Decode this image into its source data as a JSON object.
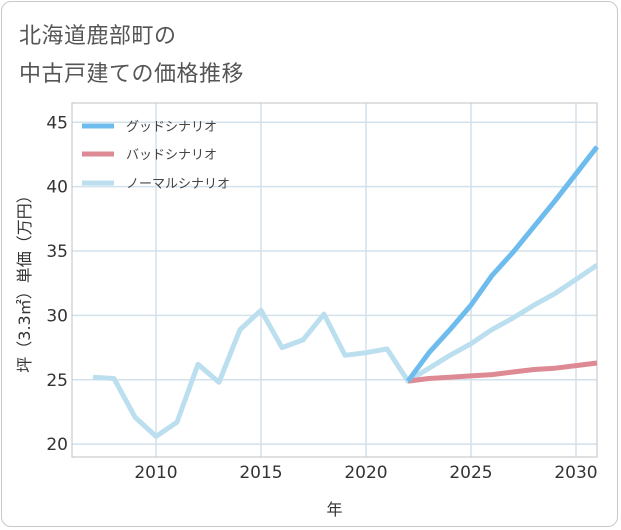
{
  "title": {
    "line1": "北海道鹿部町の",
    "line2": "中古戸建ての価格推移"
  },
  "chart_data": {
    "type": "line",
    "xlabel": "年",
    "ylabel": "坪（3.3㎡）単価（万円）",
    "xlim": [
      2006,
      2031
    ],
    "ylim": [
      19,
      46.5
    ],
    "xticks": [
      2010,
      2015,
      2020,
      2025,
      2030
    ],
    "yticks": [
      20,
      25,
      30,
      35,
      40,
      45
    ],
    "grid": true,
    "legend_position": "top-left",
    "series": [
      {
        "name": "グッドシナリオ",
        "color": "#6dbced",
        "x": [
          2022,
          2023,
          2024,
          2025,
          2026,
          2027,
          2028,
          2029,
          2030,
          2031
        ],
        "y": [
          24.9,
          27.1,
          28.9,
          30.8,
          33.1,
          34.9,
          36.9,
          38.9,
          41.0,
          43.1
        ]
      },
      {
        "name": "バッドシナリオ",
        "color": "#dd8a94",
        "x": [
          2022,
          2023,
          2024,
          2025,
          2026,
          2027,
          2028,
          2029,
          2030,
          2031
        ],
        "y": [
          24.9,
          25.1,
          25.2,
          25.3,
          25.4,
          25.6,
          25.8,
          25.9,
          26.1,
          26.3
        ]
      },
      {
        "name": "ノーマルシナリオ",
        "color": "#bcdff0",
        "x": [
          2007,
          2008,
          2009,
          2010,
          2011,
          2012,
          2013,
          2014,
          2015,
          2016,
          2017,
          2018,
          2019,
          2020,
          2021,
          2022,
          2023,
          2024,
          2025,
          2026,
          2027,
          2028,
          2029,
          2030,
          2031
        ],
        "y": [
          25.2,
          25.1,
          22.1,
          20.6,
          21.7,
          26.2,
          24.8,
          28.9,
          30.4,
          27.5,
          28.1,
          30.1,
          26.9,
          27.1,
          27.4,
          24.9,
          25.9,
          26.9,
          27.8,
          28.9,
          29.8,
          30.8,
          31.7,
          32.8,
          33.9
        ]
      }
    ]
  }
}
